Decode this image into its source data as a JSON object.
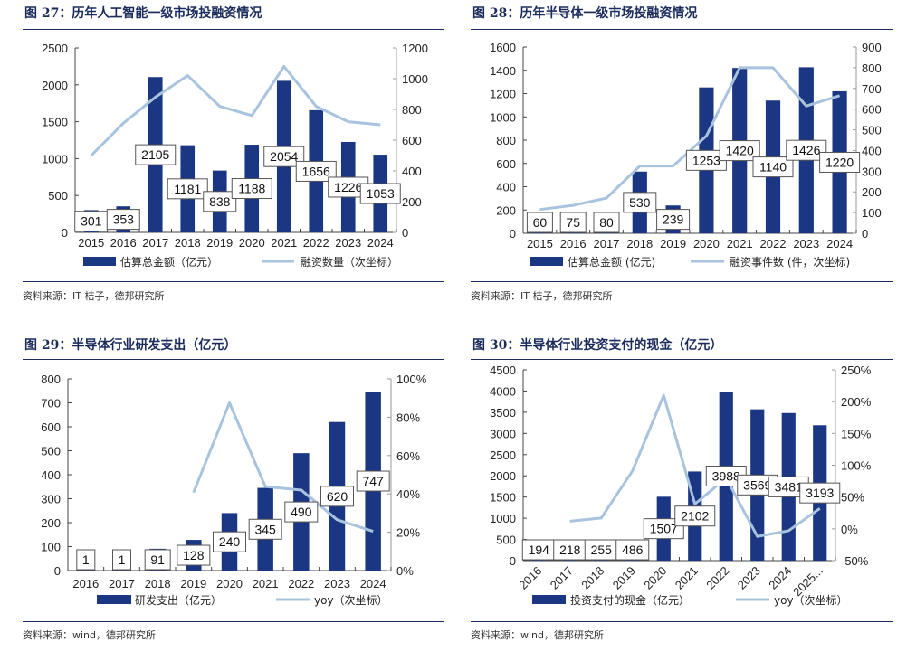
{
  "colors": {
    "bar": "#1b3682",
    "line": "#a8c3de",
    "title": "#1a2b5c"
  },
  "chart_data": [
    {
      "type": "bar+line",
      "title": "图 27：历年人工智能一级市场投融资情况",
      "source": "资料来源：IT 桔子，德邦研究所",
      "categories": [
        "2015",
        "2016",
        "2017",
        "2018",
        "2019",
        "2020",
        "2021",
        "2022",
        "2023",
        "2024"
      ],
      "series": [
        {
          "name": "估算总金额（亿元）",
          "type": "bar",
          "axis": "left",
          "values": [
            301,
            353,
            2105,
            1181,
            838,
            1188,
            2054,
            1656,
            1226,
            1053
          ],
          "labels": [
            "301",
            "353",
            "2105",
            "1181",
            "838",
            "1188",
            "2054",
            "1656",
            "1226",
            "1053"
          ]
        },
        {
          "name": "融资数量（次坐标）",
          "type": "line",
          "axis": "right",
          "values": [
            500,
            710,
            880,
            1020,
            820,
            760,
            1080,
            820,
            720,
            700
          ]
        }
      ],
      "ylim": [
        0,
        2500
      ],
      "yticks": [
        0,
        500,
        1000,
        1500,
        2000,
        2500
      ],
      "y2lim": [
        0,
        1200
      ],
      "y2ticks": [
        0,
        200,
        400,
        600,
        800,
        1000,
        1200
      ],
      "y2format": "",
      "legend": "bottom",
      "grid": false
    },
    {
      "type": "bar+line",
      "title": "图 28：历年半导体一级市场投融资情况",
      "source": "资料来源：IT 桔子，德邦研究所",
      "categories": [
        "2015",
        "2016",
        "2017",
        "2018",
        "2019",
        "2020",
        "2021",
        "2022",
        "2023",
        "2024"
      ],
      "series": [
        {
          "name": "估算总金额 (亿元)",
          "type": "bar",
          "axis": "left",
          "values": [
            60,
            75,
            80,
            530,
            239,
            1253,
            1420,
            1140,
            1426,
            1220
          ],
          "labels": [
            "60",
            "75",
            "80",
            "530",
            "239",
            "1253",
            "1420",
            "1140",
            "1426",
            "1220"
          ]
        },
        {
          "name": "融资事件数 (件，次坐标)",
          "type": "line",
          "axis": "right",
          "values": [
            115,
            135,
            170,
            325,
            325,
            470,
            800,
            800,
            615,
            665
          ]
        }
      ],
      "ylim": [
        0,
        1600
      ],
      "yticks": [
        0,
        200,
        400,
        600,
        800,
        1000,
        1200,
        1400,
        1600
      ],
      "y2lim": [
        0,
        900
      ],
      "y2ticks": [
        0,
        100,
        200,
        300,
        400,
        500,
        600,
        700,
        800,
        900
      ],
      "y2format": "",
      "legend": "bottom",
      "grid": false
    },
    {
      "type": "bar+line",
      "title": "图 29：半导体行业研发支出（亿元）",
      "source": "资料来源：wind，德邦研究所",
      "categories": [
        "2016",
        "2017",
        "2018",
        "2019",
        "2020",
        "2021",
        "2022",
        "2023",
        "2024"
      ],
      "series": [
        {
          "name": "研发支出（亿元）",
          "type": "bar",
          "axis": "left",
          "values": [
            1,
            1,
            91,
            128,
            240,
            345,
            490,
            620,
            747
          ],
          "labels": [
            "1",
            "1",
            "91",
            "128",
            "240",
            "345",
            "490",
            "620",
            "747"
          ]
        },
        {
          "name": "yoy（次坐标）",
          "type": "line",
          "axis": "right",
          "values": [
            null,
            null,
            null,
            40.7,
            87.5,
            43.8,
            42.0,
            26.5,
            20.5
          ]
        }
      ],
      "ylim": [
        0,
        800
      ],
      "yticks": [
        0,
        100,
        200,
        300,
        400,
        500,
        600,
        700,
        800
      ],
      "y2lim": [
        0,
        100
      ],
      "y2ticks": [
        0,
        20,
        40,
        60,
        80,
        100
      ],
      "y2format": "%",
      "legend": "bottom",
      "grid": false
    },
    {
      "type": "bar+line",
      "title": "图 30：半导体行业投资支付的现金（亿元）",
      "source": "资料来源：wind，德邦研究所",
      "categories": [
        "2016",
        "2017",
        "2018",
        "2019",
        "2020",
        "2021",
        "2022",
        "2023",
        "2024",
        "2025..."
      ],
      "series": [
        {
          "name": "投资支付的现金（亿元）",
          "type": "bar",
          "axis": "left",
          "values": [
            194,
            218,
            255,
            486,
            1507,
            2102,
            3988,
            3569,
            3481,
            3193
          ],
          "labels": [
            "194",
            "218",
            "255",
            "486",
            "1507",
            "2102",
            "3988",
            "3569",
            "3481",
            "3193"
          ]
        },
        {
          "name": "yoy（次坐标）",
          "type": "line",
          "axis": "right",
          "values": [
            null,
            12,
            17,
            91,
            210,
            39,
            80,
            -12,
            -3,
            32
          ]
        }
      ],
      "ylim": [
        0,
        4500
      ],
      "yticks": [
        0,
        500,
        1000,
        1500,
        2000,
        2500,
        3000,
        3500,
        4000,
        4500
      ],
      "y2lim": [
        -50,
        250
      ],
      "y2ticks": [
        -50,
        0,
        50,
        100,
        150,
        200,
        250
      ],
      "y2format": "%",
      "legend": "bottom",
      "grid": false,
      "xlabel_rotation": -45
    }
  ]
}
